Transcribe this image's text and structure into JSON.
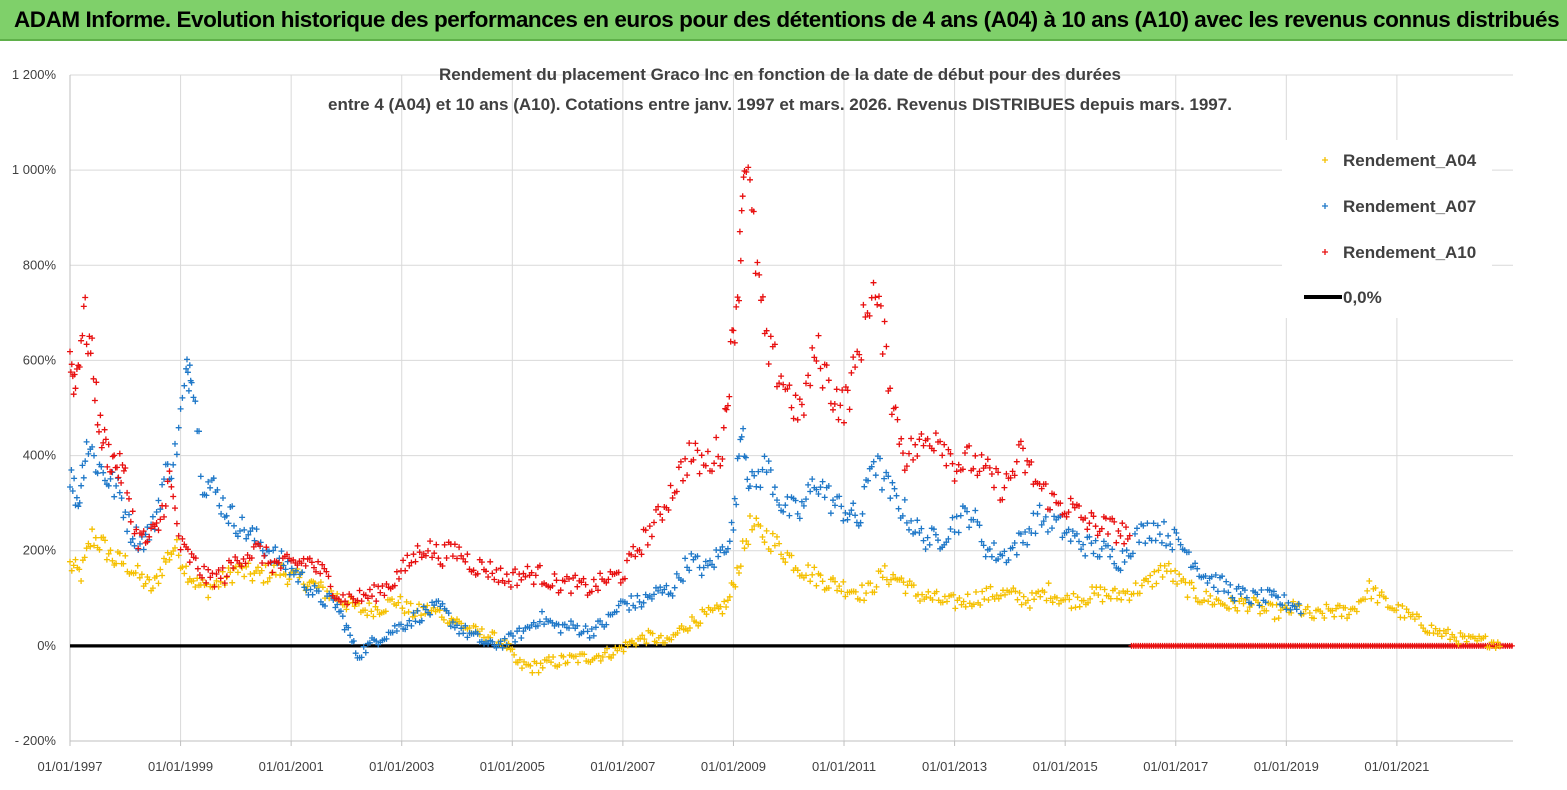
{
  "header": {
    "banner": "ADAM Informe. Evolution historique des performances en euros pour des détentions de 4 ans (A04) à 10 ans (A10) avec les revenus connus distribués"
  },
  "chart_data": {
    "type": "scatter",
    "title_lines": [
      "Rendement du placement Graco Inc en fonction de la date de début pour des durées",
      "entre 4 (A04) et 10 ans (A10). Cotations entre janv. 1997 et mars. 2026. Revenus DISTRIBUES depuis mars. 1997."
    ],
    "ylim": [
      -200,
      1200
    ],
    "y_ticks": [
      -200,
      0,
      200,
      400,
      600,
      800,
      1000,
      1200
    ],
    "y_tick_labels": [
      "- 200%",
      "0%",
      "200%",
      "400%",
      "600%",
      "800%",
      "1 000%",
      "1 200%"
    ],
    "xlim": [
      1997.0,
      2023.1
    ],
    "x_ticks": [
      1997,
      1999,
      2001,
      2003,
      2005,
      2007,
      2009,
      2011,
      2013,
      2015,
      2017,
      2019,
      2021
    ],
    "x_tick_labels": [
      "01/01/1997",
      "01/01/1999",
      "01/01/2001",
      "01/01/2003",
      "01/01/2005",
      "01/01/2007",
      "01/01/2009",
      "01/01/2011",
      "01/01/2013",
      "01/01/2015",
      "01/01/2017",
      "01/01/2019",
      "01/01/2021"
    ],
    "legend_position": "right",
    "series": [
      {
        "name": "Rendement_A04",
        "color": "#f5c000",
        "x": [
          1997.0,
          1997.2,
          1997.4,
          1997.6,
          1997.8,
          1998.0,
          1998.3,
          1998.5,
          1998.7,
          1998.9,
          1999.1,
          1999.3,
          1999.5,
          1999.8,
          2000.0,
          2000.3,
          2000.5,
          2000.8,
          2001.0,
          2001.3,
          2001.5,
          2001.8,
          2002.0,
          2002.3,
          2002.6,
          2002.9,
          2003.2,
          2003.5,
          2003.8,
          2004.0,
          2004.3,
          2004.6,
          2004.9,
          2005.1,
          2005.4,
          2005.7,
          2006.0,
          2006.3,
          2006.6,
          2006.9,
          2007.2,
          2007.5,
          2007.8,
          2008.1,
          2008.4,
          2008.7,
          2008.9,
          2009.1,
          2009.3,
          2009.6,
          2009.9,
          2010.2,
          2010.5,
          2010.8,
          2011.1,
          2011.4,
          2011.7,
          2012.0,
          2012.3,
          2012.6,
          2012.9,
          2013.2,
          2013.5,
          2013.8,
          2014.1,
          2014.4,
          2014.7,
          2015.0,
          2015.3,
          2015.6,
          2015.9,
          2016.2,
          2016.5,
          2016.8,
          2017.1,
          2017.4,
          2017.7,
          2018.0,
          2018.3,
          2018.6,
          2018.9,
          2019.2,
          2019.5,
          2019.8,
          2020.0,
          2020.2,
          2020.5,
          2020.8,
          2021.1,
          2021.4,
          2021.7,
          2022.0,
          2022.3,
          2022.6,
          2022.9
        ],
        "y": [
          170,
          150,
          230,
          210,
          180,
          175,
          140,
          120,
          175,
          210,
          160,
          130,
          120,
          140,
          160,
          150,
          150,
          160,
          145,
          135,
          120,
          105,
          90,
          75,
          80,
          95,
          70,
          75,
          65,
          50,
          30,
          20,
          0,
          -40,
          -45,
          -35,
          -30,
          -25,
          -20,
          -10,
          10,
          20,
          5,
          40,
          60,
          70,
          90,
          170,
          250,
          230,
          200,
          165,
          145,
          130,
          120,
          110,
          150,
          140,
          110,
          100,
          90,
          95,
          105,
          110,
          105,
          95,
          115,
          95,
          100,
          110,
          105,
          115,
          130,
          165,
          130,
          105,
          95,
          85,
          90,
          75,
          70,
          80,
          60,
          75,
          70,
          75,
          120,
          90,
          70,
          50,
          30,
          20,
          10,
          10,
          5
        ]
      },
      {
        "name": "Rendement_A07",
        "color": "#1f78c8",
        "x": [
          1997.0,
          1997.15,
          1997.3,
          1997.5,
          1997.7,
          1997.9,
          1998.1,
          1998.3,
          1998.5,
          1998.7,
          1998.9,
          1999.1,
          1999.2,
          1999.4,
          1999.6,
          1999.8,
          2000.0,
          2000.3,
          2000.6,
          2000.9,
          2001.2,
          2001.5,
          2001.8,
          2002.0,
          2002.2,
          2002.5,
          2002.8,
          2003.1,
          2003.4,
          2003.7,
          2004.0,
          2004.3,
          2004.6,
          2004.9,
          2005.2,
          2005.5,
          2005.8,
          2006.1,
          2006.4,
          2006.7,
          2007.0,
          2007.3,
          2007.6,
          2007.9,
          2008.2,
          2008.5,
          2008.8,
          2009.0,
          2009.15,
          2009.3,
          2009.6,
          2009.9,
          2010.2,
          2010.5,
          2010.8,
          2011.1,
          2011.3,
          2011.5,
          2011.8,
          2012.1,
          2012.4,
          2012.7,
          2013.0,
          2013.3,
          2013.6,
          2013.9,
          2014.2,
          2014.5,
          2014.8,
          2015.1,
          2015.4,
          2015.7,
          2016.0,
          2016.3,
          2016.6,
          2016.9,
          2017.2,
          2017.5,
          2017.8,
          2018.1,
          2018.4,
          2018.7,
          2019.0,
          2019.3
        ],
        "y": [
          360,
          300,
          430,
          380,
          350,
          320,
          240,
          220,
          250,
          350,
          400,
          560,
          600,
          350,
          330,
          290,
          260,
          230,
          200,
          170,
          140,
          100,
          90,
          40,
          -20,
          10,
          30,
          50,
          70,
          80,
          40,
          20,
          0,
          10,
          30,
          60,
          40,
          40,
          30,
          50,
          90,
          90,
          110,
          120,
          180,
          160,
          200,
          250,
          480,
          330,
          380,
          290,
          280,
          350,
          300,
          280,
          260,
          400,
          330,
          280,
          230,
          220,
          260,
          280,
          200,
          190,
          220,
          270,
          260,
          230,
          210,
          200,
          180,
          230,
          250,
          230,
          200,
          150,
          130,
          110,
          100,
          100,
          90,
          80
        ]
      },
      {
        "name": "Rendement_A10",
        "color": "#e81010",
        "x": [
          1997.0,
          1997.1,
          1997.25,
          1997.4,
          1997.55,
          1997.7,
          1997.85,
          1998.0,
          1998.2,
          1998.4,
          1998.6,
          1998.8,
          1999.0,
          1999.2,
          1999.5,
          1999.8,
          2000.1,
          2000.4,
          2000.7,
          2001.0,
          2001.3,
          2001.6,
          2001.9,
          2002.2,
          2002.5,
          2002.8,
          2003.1,
          2003.4,
          2003.7,
          2004.0,
          2004.3,
          2004.6,
          2004.9,
          2005.2,
          2005.5,
          2005.8,
          2006.1,
          2006.4,
          2006.7,
          2007.0,
          2007.3,
          2007.6,
          2007.9,
          2008.2,
          2008.5,
          2008.8,
          2008.95,
          2009.1,
          2009.2,
          2009.4,
          2009.6,
          2009.9,
          2010.2,
          2010.5,
          2010.8,
          2011.0,
          2011.2,
          2011.5,
          2011.7,
          2011.9,
          2012.1,
          2012.4,
          2012.7,
          2013.0,
          2013.3,
          2013.6,
          2013.9,
          2014.2,
          2014.5,
          2014.8,
          2015.1,
          2015.4,
          2015.7,
          2016.0,
          2016.2
        ],
        "y": [
          600,
          550,
          700,
          600,
          450,
          400,
          380,
          350,
          230,
          220,
          250,
          350,
          210,
          180,
          140,
          150,
          190,
          200,
          170,
          170,
          180,
          150,
          100,
          100,
          110,
          130,
          170,
          210,
          190,
          200,
          170,
          160,
          140,
          150,
          150,
          130,
          130,
          120,
          140,
          150,
          210,
          260,
          330,
          400,
          380,
          420,
          600,
          780,
          1050,
          820,
          620,
          560,
          480,
          620,
          530,
          500,
          580,
          760,
          660,
          500,
          400,
          420,
          450,
          380,
          390,
          360,
          330,
          400,
          340,
          300,
          290,
          260,
          250,
          240,
          230
        ]
      },
      {
        "name": "0,0%",
        "color": "#000000",
        "x": [
          1997.0,
          2016.2
        ],
        "y": [
          0,
          0
        ]
      }
    ],
    "zero_series_red_tail": {
      "x": [
        2016.2,
        2023.1
      ],
      "y": [
        0,
        0
      ]
    }
  }
}
